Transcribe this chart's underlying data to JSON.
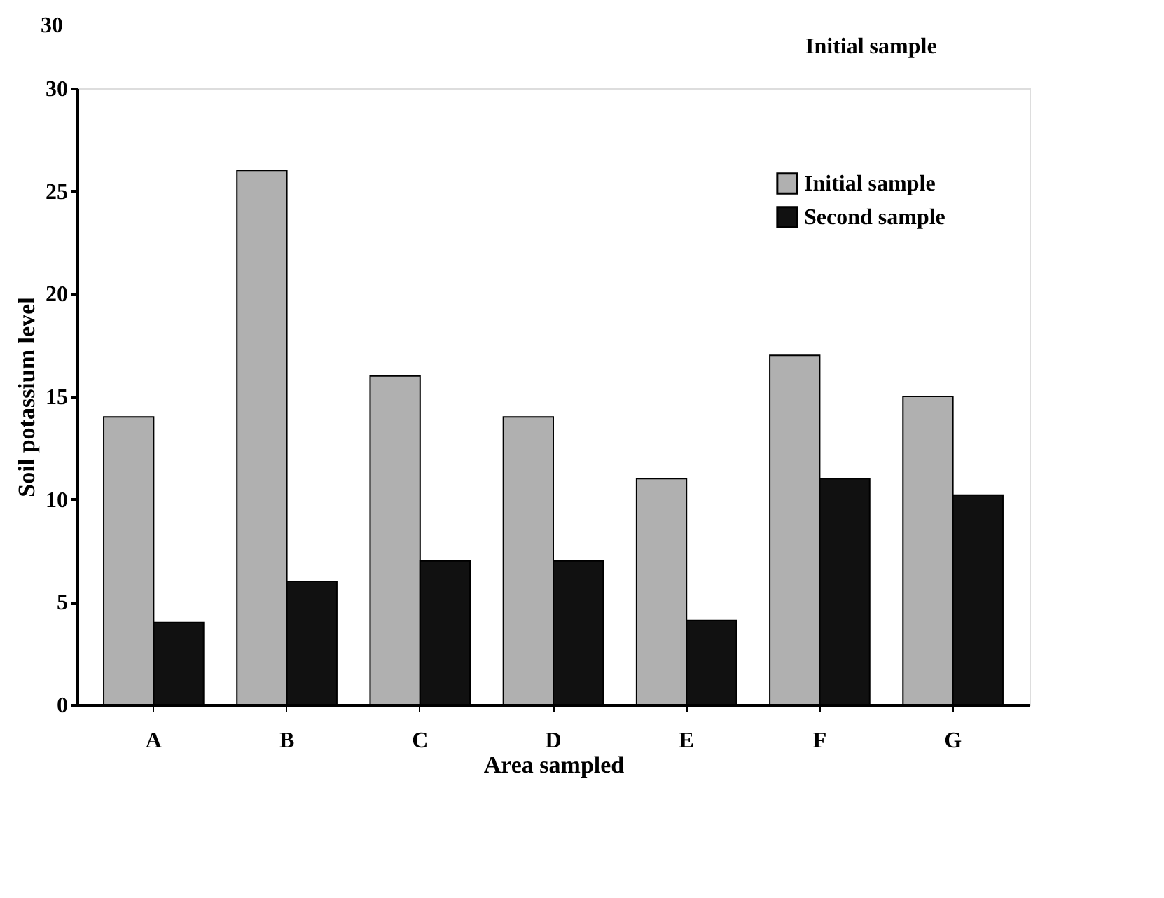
{
  "chart_data": {
    "type": "bar",
    "xlabel": "Area sampled",
    "ylabel": "Soil potassium level",
    "categories": [
      "A",
      "B",
      "C",
      "D",
      "E",
      "F",
      "G"
    ],
    "series": [
      {
        "name": "Initial sample",
        "color": "#b0b0b0",
        "values": [
          14,
          26,
          16,
          14,
          11,
          17,
          15
        ]
      },
      {
        "name": "Second sample",
        "color": "#111111",
        "values": [
          4,
          6,
          7,
          7,
          4.1,
          11,
          10.2
        ]
      }
    ],
    "ylim": [
      0,
      30
    ],
    "yticks": [
      0,
      5,
      10,
      15,
      20,
      25,
      30
    ],
    "grid": false,
    "legend": "top right",
    "annotations": [
      "30",
      "Initial sample"
    ]
  }
}
